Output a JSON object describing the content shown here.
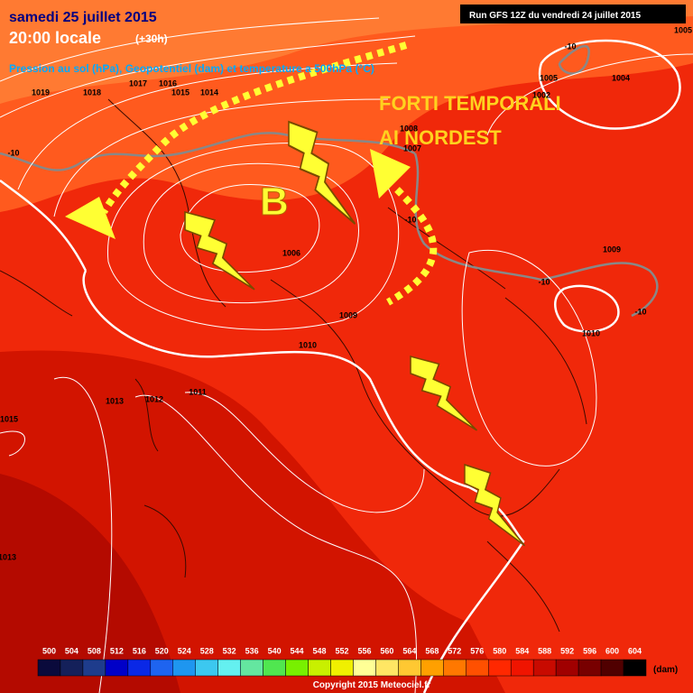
{
  "header": {
    "date": "samedi 25 juillet 2015",
    "time": "20:00 locale",
    "offset": "(+30h)",
    "description": "Pression au sol (hPa), Geopotentiel (dam) et temperature a 500hPa (°C)",
    "run": "Run GFS 12Z du vendredi 24 juillet 2015"
  },
  "annotations": {
    "warning": [
      "FORTI TEMPORALI",
      "AI NORDEST"
    ],
    "low": "B"
  },
  "isobar_labels": [
    "1019",
    "1018",
    "1017",
    "1016",
    "1015",
    "1014",
    "1006",
    "1009",
    "1010",
    "1013",
    "1012",
    "1011",
    "1015",
    "1013",
    "1005",
    "1004",
    "1008",
    "1007",
    "1009",
    "1010",
    "1005",
    "1002"
  ],
  "temperature_labels": [
    "-10",
    "-10",
    "-10",
    "-10",
    "-10"
  ],
  "legend": {
    "levels": [
      500,
      504,
      508,
      512,
      516,
      520,
      524,
      528,
      532,
      536,
      540,
      544,
      548,
      552,
      556,
      560,
      564,
      568,
      572,
      576,
      580,
      584,
      588,
      592,
      596,
      600,
      604
    ],
    "colors": [
      "#0a0a3c",
      "#14205a",
      "#1e3c8c",
      "#0000c8",
      "#0a28e6",
      "#1e64f0",
      "#1e96f0",
      "#3cc8f0",
      "#64f0f0",
      "#64e6a0",
      "#50e650",
      "#78f000",
      "#c8f000",
      "#f0f000",
      "#ffff96",
      "#ffe664",
      "#ffc832",
      "#ffa000",
      "#ff7800",
      "#ff5000",
      "#ff2800",
      "#f01400",
      "#c80a00",
      "#a00000",
      "#780000",
      "#500000",
      "#000000"
    ],
    "unit": "(dam)"
  },
  "footer": {
    "copyright": "Copyright 2015 Meteociel.fr"
  }
}
